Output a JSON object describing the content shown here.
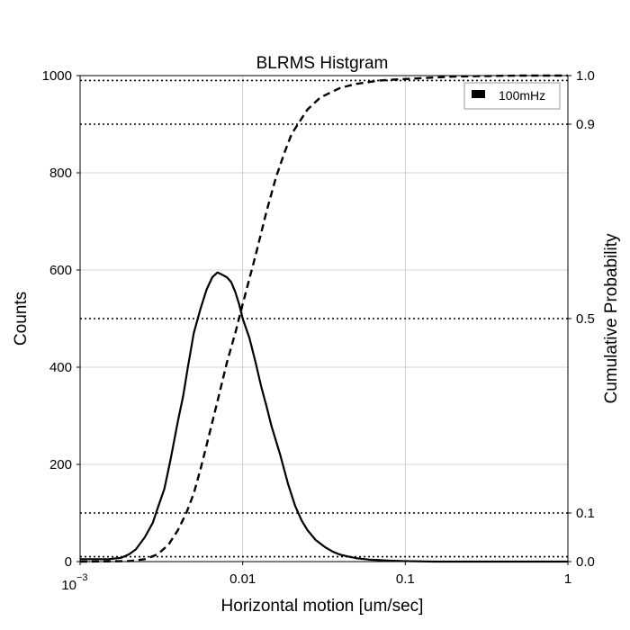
{
  "chart_data": {
    "type": "line",
    "title": "BLRMS Histgram",
    "xlabel": "Horizontal motion [um/sec]",
    "ylabel": "Counts",
    "y2label": "Cumulative Probability",
    "xscale": "log",
    "xlim": [
      0.001,
      1
    ],
    "ylim": [
      0,
      1000
    ],
    "y2lim": [
      0,
      1
    ],
    "xticks": [
      {
        "value": 0.001,
        "base": "10",
        "exp": "−3"
      },
      {
        "value": 0.01,
        "label": "0.01"
      },
      {
        "value": 0.1,
        "label": "0.1"
      },
      {
        "value": 1,
        "label": "1"
      }
    ],
    "yticks": [
      0,
      200,
      400,
      600,
      800,
      1000
    ],
    "y2ticks": [
      {
        "value": 0.0,
        "label": "0.0"
      },
      {
        "value": 0.1,
        "label": "0.1"
      },
      {
        "value": 0.5,
        "label": "0.5"
      },
      {
        "value": 0.9,
        "label": "0.9"
      },
      {
        "value": 1.0,
        "label": "1.0"
      }
    ],
    "reference_lines_y2": [
      0.01,
      0.1,
      0.5,
      0.9,
      0.99
    ],
    "grid": true,
    "legend": {
      "placement": "top-right",
      "entries": [
        "100mHz"
      ]
    },
    "series": [
      {
        "name": "100mHz",
        "axis": "left",
        "style": "solid",
        "color": "#000000",
        "x": [
          0.001,
          0.0015,
          0.0018,
          0.002,
          0.0022,
          0.0025,
          0.0028,
          0.003,
          0.0033,
          0.0036,
          0.004,
          0.0043,
          0.0046,
          0.005,
          0.0055,
          0.006,
          0.0065,
          0.007,
          0.0075,
          0.008,
          0.0085,
          0.009,
          0.0095,
          0.01,
          0.011,
          0.012,
          0.013,
          0.014,
          0.015,
          0.017,
          0.019,
          0.021,
          0.023,
          0.025,
          0.028,
          0.032,
          0.036,
          0.04,
          0.045,
          0.05,
          0.06,
          0.07,
          0.08,
          0.1,
          0.15,
          0.2,
          0.3,
          0.5,
          1
        ],
        "values": [
          5,
          5,
          8,
          15,
          25,
          50,
          80,
          110,
          150,
          210,
          290,
          340,
          400,
          470,
          520,
          560,
          585,
          595,
          590,
          585,
          575,
          555,
          530,
          500,
          460,
          410,
          360,
          320,
          280,
          220,
          160,
          115,
          85,
          65,
          45,
          30,
          20,
          14,
          10,
          7,
          4,
          3,
          2,
          1,
          0,
          0,
          0,
          0,
          0
        ]
      },
      {
        "name": "Cumulative",
        "axis": "right",
        "style": "dashed",
        "color": "#000000",
        "x": [
          0.001,
          0.002,
          0.0025,
          0.003,
          0.0035,
          0.004,
          0.0045,
          0.005,
          0.0055,
          0.006,
          0.007,
          0.008,
          0.009,
          0.01,
          0.012,
          0.014,
          0.016,
          0.018,
          0.02,
          0.025,
          0.03,
          0.04,
          0.05,
          0.07,
          0.1,
          0.15,
          0.2,
          0.3,
          0.5,
          1
        ],
        "values": [
          0.0,
          0.001,
          0.005,
          0.015,
          0.035,
          0.065,
          0.1,
          0.14,
          0.19,
          0.24,
          0.33,
          0.41,
          0.47,
          0.53,
          0.63,
          0.72,
          0.79,
          0.84,
          0.88,
          0.93,
          0.955,
          0.975,
          0.983,
          0.99,
          0.993,
          0.996,
          0.998,
          0.999,
          1.0,
          1.0
        ]
      }
    ]
  }
}
